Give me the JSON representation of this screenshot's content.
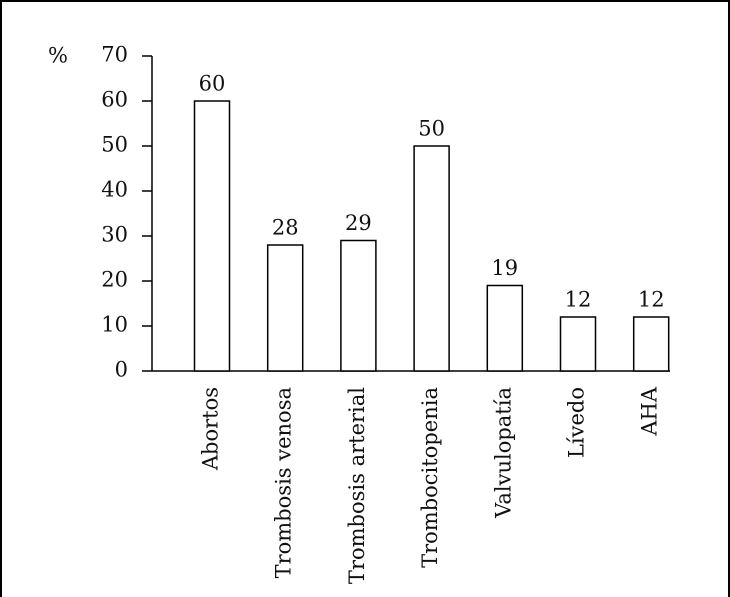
{
  "chart_data": {
    "type": "bar",
    "y_label": "%",
    "categories": [
      "Abortos",
      "Trombosis venosa",
      "Trombosis arterial",
      "Trombocitopenia",
      "Valvulopatía",
      "Lívedo",
      "AHA"
    ],
    "values": [
      60,
      28,
      29,
      50,
      19,
      12,
      12
    ],
    "color": "#ffffff",
    "ylim": [
      0,
      70
    ],
    "yticks": [
      0,
      10,
      20,
      30,
      40,
      50,
      60,
      70
    ],
    "grid": false
  }
}
